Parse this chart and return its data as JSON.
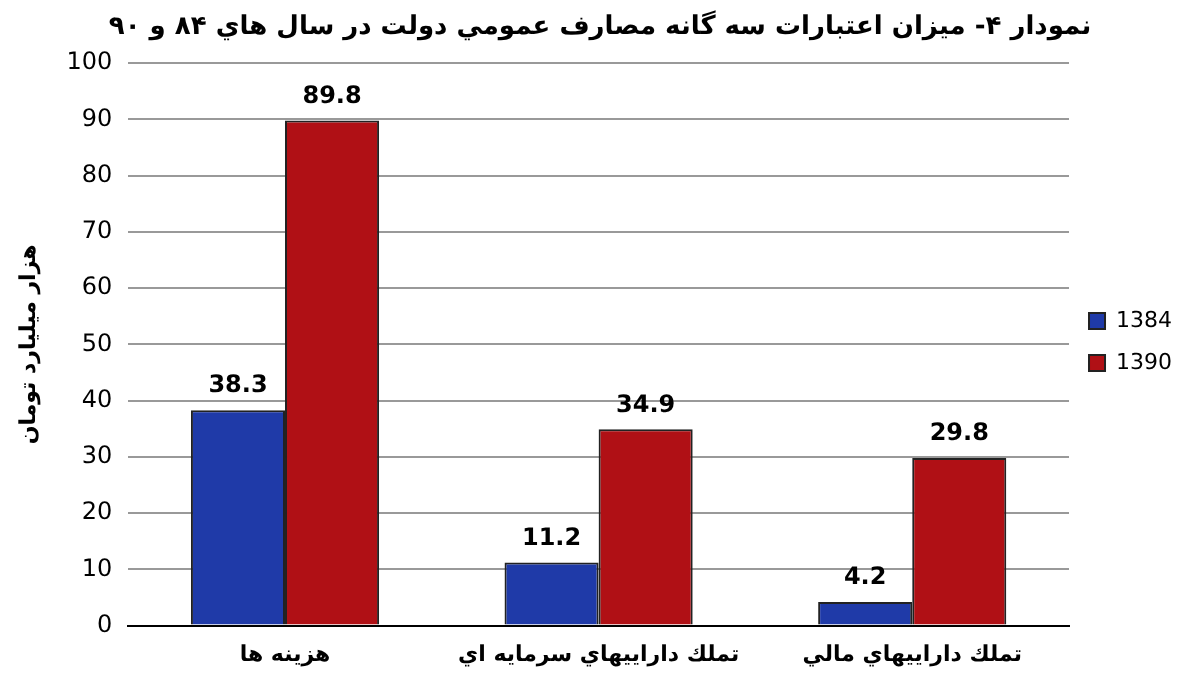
{
  "chart_data": {
    "type": "bar",
    "title": "نمودار ۴- میزان اعتبارات سه گانه مصارف عمومي دولت در سال هاي ۸۴ و ۹۰",
    "ylabel": "هزار ميليارد تومان",
    "categories": [
      "هزینه ها",
      "تملك داراييهاي سرمايه اي",
      "تملك داراييهاي مالي"
    ],
    "series": [
      {
        "name": "1384",
        "color": "#1f3aa8",
        "values": [
          38.3,
          11.2,
          4.2
        ]
      },
      {
        "name": "1390",
        "color": "#b01015",
        "values": [
          89.8,
          34.9,
          29.8
        ]
      }
    ],
    "ylim": [
      0,
      100
    ],
    "yticks": [
      0,
      10,
      20,
      30,
      40,
      50,
      60,
      70,
      80,
      90,
      100
    ],
    "grid": "y",
    "legend": "right",
    "data_labels": true
  }
}
